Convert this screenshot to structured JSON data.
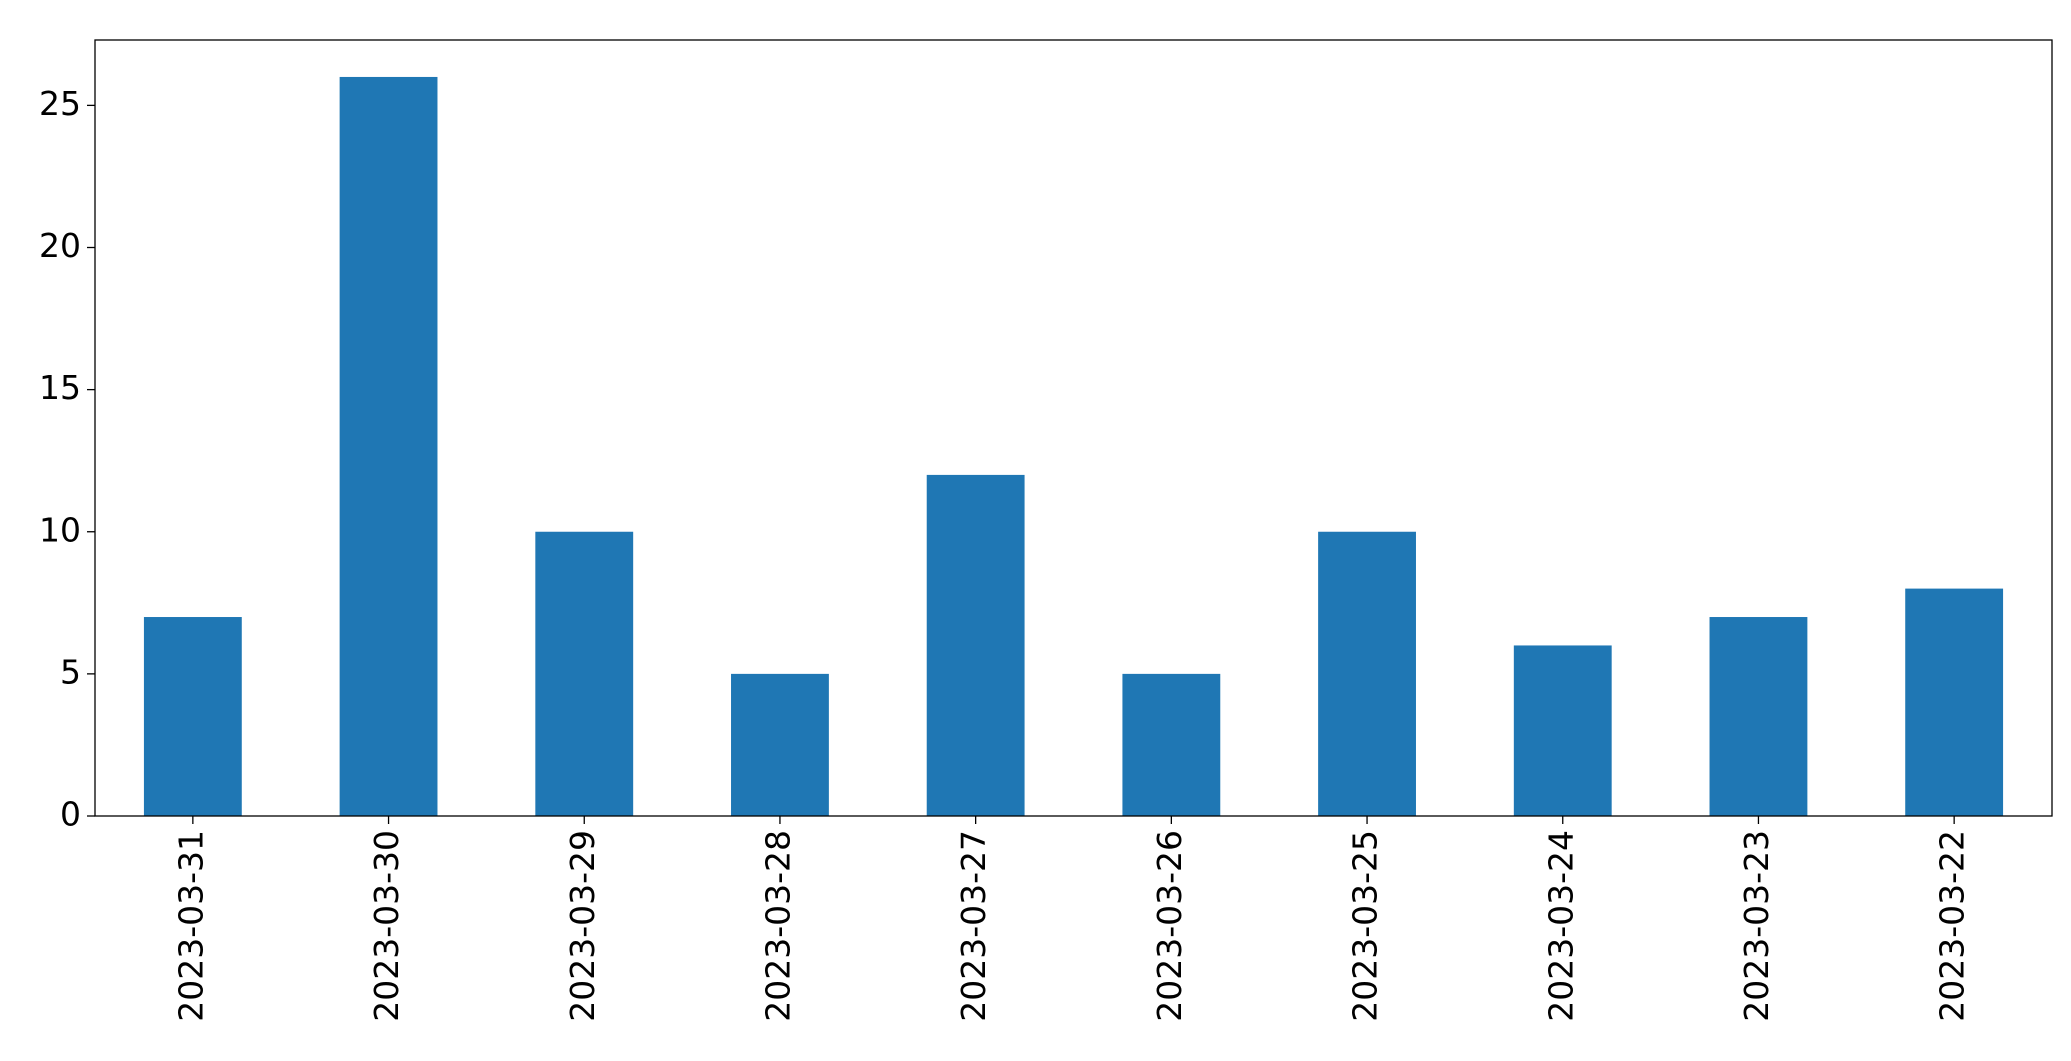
{
  "chart_data": {
    "type": "bar",
    "categories": [
      "2023-03-31",
      "2023-03-30",
      "2023-03-29",
      "2023-03-28",
      "2023-03-27",
      "2023-03-26",
      "2023-03-25",
      "2023-03-24",
      "2023-03-23",
      "2023-03-22"
    ],
    "values": [
      7,
      26,
      10,
      5,
      12,
      5,
      10,
      6,
      7,
      8
    ],
    "color": "#1f77b4",
    "ylim": [
      0,
      27.3
    ],
    "yticks": [
      0,
      5,
      10,
      15,
      20,
      25
    ],
    "grid": false
  }
}
